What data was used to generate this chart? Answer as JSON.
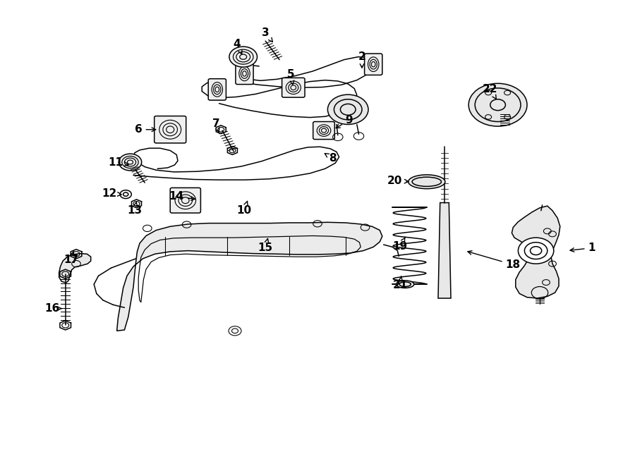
{
  "bg_color": "#ffffff",
  "line_color": "#000000",
  "text_color": "#000000",
  "fig_width": 9.0,
  "fig_height": 6.61,
  "dpi": 100,
  "label_positions": {
    "1": [
      0.932,
      0.468,
      0.893,
      0.462
    ],
    "2": [
      0.57,
      0.878,
      0.57,
      0.848
    ],
    "3": [
      0.418,
      0.93,
      0.432,
      0.905
    ],
    "4": [
      0.373,
      0.906,
      0.383,
      0.878
    ],
    "5": [
      0.458,
      0.84,
      0.462,
      0.812
    ],
    "6": [
      0.218,
      0.722,
      0.25,
      0.722
    ],
    "7": [
      0.34,
      0.735,
      0.346,
      0.71
    ],
    "8": [
      0.524,
      0.66,
      0.51,
      0.672
    ],
    "9": [
      0.55,
      0.742,
      0.525,
      0.722
    ],
    "10": [
      0.384,
      0.548,
      0.39,
      0.57
    ],
    "11": [
      0.182,
      0.652,
      0.207,
      0.645
    ],
    "12": [
      0.172,
      0.585,
      0.196,
      0.582
    ],
    "13": [
      0.212,
      0.548,
      0.215,
      0.568
    ],
    "14": [
      0.278,
      0.578,
      0.312,
      0.572
    ],
    "15": [
      0.418,
      0.468,
      0.422,
      0.49
    ],
    "16": [
      0.082,
      0.338,
      0.098,
      0.338
    ],
    "17": [
      0.112,
      0.442,
      0.116,
      0.462
    ],
    "18": [
      0.808,
      0.432,
      0.732,
      0.462
    ],
    "19": [
      0.63,
      0.472,
      0.64,
      0.495
    ],
    "20": [
      0.622,
      0.612,
      0.648,
      0.61
    ],
    "21": [
      0.63,
      0.388,
      0.632,
      0.408
    ],
    "22": [
      0.772,
      0.808,
      0.784,
      0.782
    ]
  }
}
